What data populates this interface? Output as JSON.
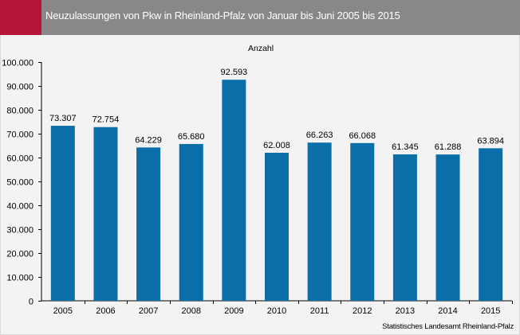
{
  "colors": {
    "accent": "#b5153a",
    "title_bar": "#888888",
    "bar": "#0a6ea8",
    "axis": "#000000"
  },
  "chart_data": {
    "type": "bar",
    "title": "Neuzulassungen von Pkw in Rheinland-Pfalz von Januar bis Juni 2005 bis 2015",
    "ylabel": "Anzahl",
    "categories": [
      "2005",
      "2006",
      "2007",
      "2008",
      "2009",
      "2010",
      "2011",
      "2012",
      "2013",
      "2014",
      "2015"
    ],
    "values": [
      73307,
      72754,
      64229,
      65680,
      92593,
      62008,
      66263,
      66068,
      61345,
      61288,
      63894
    ],
    "value_labels": [
      "73.307",
      "72.754",
      "64.229",
      "65.680",
      "92.593",
      "62.008",
      "66.263",
      "66.068",
      "61.345",
      "61.288",
      "63.894"
    ],
    "yticks": [
      0,
      10000,
      20000,
      30000,
      40000,
      50000,
      60000,
      70000,
      80000,
      90000,
      100000
    ],
    "ytick_labels": [
      "0",
      "10.000",
      "20.000",
      "30.000",
      "40.000",
      "50.000",
      "60.000",
      "70.000",
      "80.000",
      "90.000",
      "100.000"
    ],
    "ylim": [
      0,
      100000
    ],
    "grid": false,
    "legend": "none"
  },
  "source": "Statistisches Landesamt Rheinland-Pfalz"
}
